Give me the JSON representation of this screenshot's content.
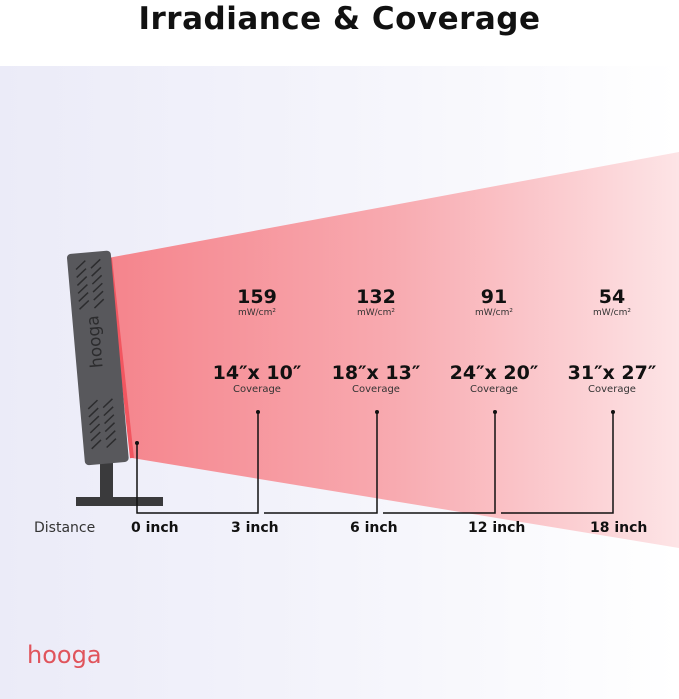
{
  "title": "Irradiance & Coverage",
  "device_brand": "hooga",
  "logo": "hooga",
  "distance_label": "Distance",
  "colors": {
    "beam": "#f5868d",
    "device": "#58585c",
    "accent": "#e0545c"
  },
  "points": [
    {
      "distance": "0 inch"
    },
    {
      "distance": "3 inch",
      "irradiance": "159",
      "unit": "mW/cm²",
      "coverage": "14″x 10″",
      "coverage_label": "Coverage"
    },
    {
      "distance": "6 inch",
      "irradiance": "132",
      "unit": "mW/cm²",
      "coverage": "18″x 13″",
      "coverage_label": "Coverage"
    },
    {
      "distance": "12 inch",
      "irradiance": "91",
      "unit": "mW/cm²",
      "coverage": "24″x 20″",
      "coverage_label": "Coverage"
    },
    {
      "distance": "18 inch",
      "irradiance": "54",
      "unit": "mW/cm²",
      "coverage": "31″x 27″",
      "coverage_label": "Coverage"
    }
  ]
}
